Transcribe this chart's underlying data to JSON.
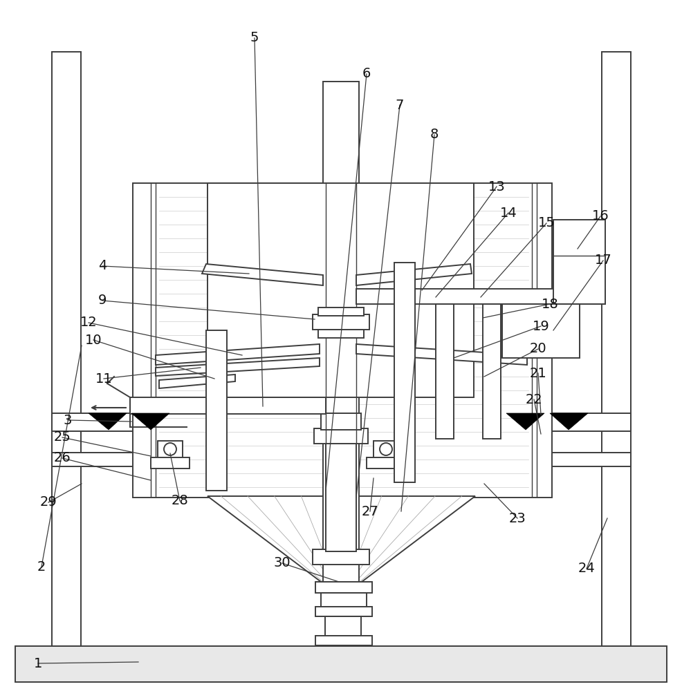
{
  "bg_color": "#ffffff",
  "lc": "#3d3d3d",
  "lw": 1.4,
  "fs": 14
}
